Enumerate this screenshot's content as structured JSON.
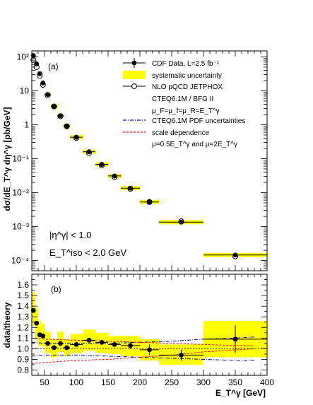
{
  "chart_data": [
    {
      "type": "scatter",
      "panel_label": "(a)",
      "ylabel": "dσ/dE_T^γ dη^γ [pb/GeV]",
      "y_scale": "log",
      "xlim": [
        30,
        400
      ],
      "ylim": [
        5e-05,
        150
      ],
      "ytick_labels": [
        "10⁻⁴",
        "10⁻³",
        "10⁻²",
        "10⁻¹",
        "1",
        "10",
        "10²"
      ],
      "ytick_values": [
        0.0001,
        0.001,
        0.01,
        0.1,
        1,
        10,
        100
      ],
      "cuts": [
        "|η^γ| < 1.0",
        "E_T^iso < 2.0 GeV"
      ],
      "legend": {
        "placement": "top-right",
        "entries": [
          {
            "label": "CDF Data, L=2.5 fb⁻¹",
            "style": "data"
          },
          {
            "label": "systematic uncertainty",
            "style": "band"
          },
          {
            "label": "NLO pQCD JETPHOX",
            "style": "theory"
          },
          {
            "label": "CTEQ6.1M / BFG II",
            "style": "text"
          },
          {
            "label": "μ_F=μ_f=μ_R=E_T^γ",
            "style": "text"
          },
          {
            "label": "CTEQ6.1M PDF uncertainties",
            "style": "pdf"
          },
          {
            "label": "scale dependence",
            "style": "scale"
          },
          {
            "label": "μ=0.5E_T^γ and μ=2E_T^γ",
            "style": "text"
          }
        ]
      },
      "series": [
        {
          "name": "CDF Data, L=2.5 fb⁻¹",
          "color": "#000000",
          "x": [
            32.5,
            37.5,
            42.5,
            47.5,
            55,
            65,
            75,
            85,
            100,
            120,
            140,
            160,
            185,
            215,
            265,
            350
          ],
          "xlow": [
            30,
            35,
            40,
            45,
            50,
            60,
            70,
            80,
            90,
            110,
            130,
            150,
            170,
            200,
            230,
            300
          ],
          "xhigh": [
            35,
            40,
            45,
            50,
            60,
            70,
            80,
            90,
            110,
            130,
            150,
            170,
            200,
            230,
            300,
            400
          ],
          "y": [
            110,
            62,
            32,
            17,
            7.8,
            3.5,
            1.85,
            0.92,
            0.43,
            0.16,
            0.068,
            0.031,
            0.0135,
            0.0053,
            0.00135,
            0.000145
          ]
        },
        {
          "name": "NLO pQCD JETPHOX",
          "color": "#000000",
          "x": [
            32.5,
            37.5,
            42.5,
            47.5,
            55,
            65,
            75,
            85,
            100,
            120,
            140,
            160,
            185,
            215,
            265,
            350
          ],
          "y": [
            82,
            50,
            28,
            15,
            7.4,
            3.45,
            1.78,
            0.9,
            0.41,
            0.148,
            0.064,
            0.029,
            0.013,
            0.0053,
            0.00142,
            0.000133
          ]
        }
      ]
    },
    {
      "type": "scatter",
      "panel_label": "(b)",
      "xlabel": "E_T^γ [GeV]",
      "ylabel": "data/theory",
      "xlim": [
        30,
        400
      ],
      "ylim": [
        0.75,
        1.7
      ],
      "xticks": [
        50,
        100,
        150,
        200,
        250,
        300,
        350,
        400
      ],
      "yticks": [
        0.8,
        0.9,
        1.0,
        1.1,
        1.2,
        1.3,
        1.4,
        1.5,
        1.6
      ],
      "reference_line": 1.0,
      "series": [
        {
          "name": "CDF Data, L=2.5 fb⁻¹",
          "color": "#000000",
          "x": [
            32.5,
            37.5,
            42.5,
            47.5,
            55,
            65,
            75,
            85,
            100,
            120,
            140,
            160,
            185,
            215,
            265,
            350
          ],
          "xlow": [
            30,
            35,
            40,
            45,
            50,
            60,
            70,
            80,
            90,
            110,
            130,
            150,
            170,
            200,
            230,
            300
          ],
          "xhigh": [
            35,
            40,
            45,
            50,
            60,
            70,
            80,
            90,
            110,
            130,
            150,
            170,
            200,
            230,
            300,
            400
          ],
          "y": [
            1.36,
            1.24,
            1.13,
            1.12,
            1.05,
            1.01,
            1.05,
            1.01,
            1.04,
            1.08,
            1.06,
            1.04,
            1.03,
            0.99,
            0.94,
            1.09
          ],
          "stat": [
            0.01,
            0.01,
            0.01,
            0.01,
            0.01,
            0.01,
            0.01,
            0.01,
            0.01,
            0.015,
            0.02,
            0.02,
            0.03,
            0.05,
            0.05,
            0.13
          ]
        },
        {
          "name": "systematic uncertainty",
          "color": "#ffff00",
          "low": [
            1.22,
            1.1,
            1.03,
            1.02,
            0.96,
            0.92,
            0.97,
            0.93,
            0.96,
            0.98,
            0.96,
            0.95,
            0.93,
            0.89,
            0.85,
            0.92
          ],
          "high": [
            1.53,
            1.38,
            1.26,
            1.23,
            1.16,
            1.09,
            1.16,
            1.09,
            1.14,
            1.18,
            1.15,
            1.12,
            1.12,
            1.09,
            1.04,
            1.26
          ]
        },
        {
          "name": "CTEQ6.1M PDF uncertainties",
          "color": "#0000cc",
          "x": [
            30,
            50,
            100,
            150,
            200,
            250,
            300,
            350,
            380
          ],
          "up": [
            1.06,
            1.05,
            1.05,
            1.05,
            1.06,
            1.07,
            1.09,
            1.1,
            1.11
          ],
          "down": [
            0.93,
            0.94,
            0.94,
            0.93,
            0.92,
            0.91,
            0.9,
            0.89,
            0.89
          ]
        },
        {
          "name": "scale dependence",
          "color": "#ff0000",
          "x": [
            30,
            50,
            100,
            150,
            200,
            250,
            300,
            350,
            380
          ],
          "up": [
            1.1,
            1.09,
            1.08,
            1.07,
            1.06,
            1.05,
            1.04,
            1.03,
            1.03
          ],
          "down": [
            0.86,
            0.87,
            0.89,
            0.9,
            0.92,
            0.94,
            0.97,
            0.99,
            1.0
          ]
        }
      ]
    }
  ]
}
